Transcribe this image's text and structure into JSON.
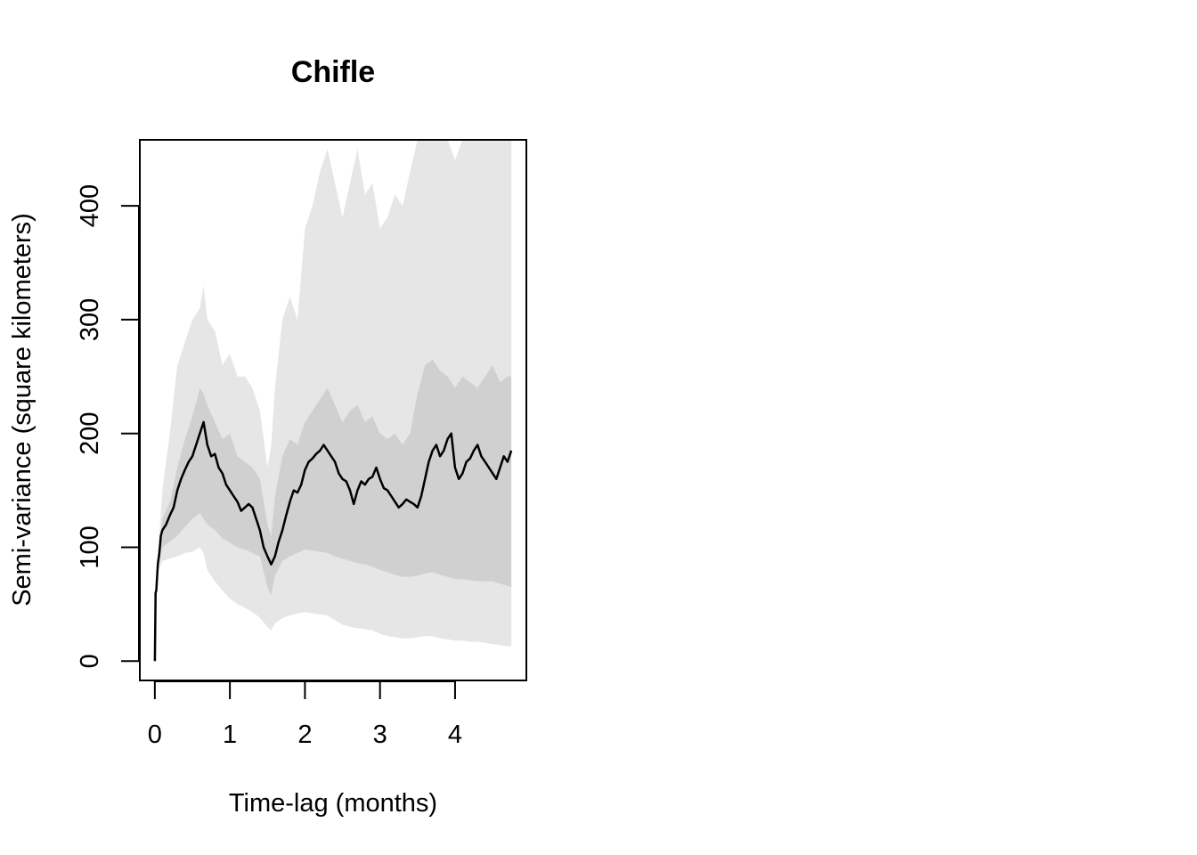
{
  "chart_data": {
    "type": "area",
    "title": "Chifle",
    "xlabel": "Time-lag (months)",
    "ylabel": "Semi-variance (square kilometers)",
    "xlim": [
      -0.2,
      4.95
    ],
    "ylim": [
      -17,
      458
    ],
    "xticks": [
      0,
      1,
      2,
      3,
      4
    ],
    "yticks": [
      0,
      100,
      200,
      300,
      400
    ],
    "grid": false,
    "colors": {
      "outer_band": "#e6e6e6",
      "inner_band": "#d0d0d0",
      "line": "#000000"
    },
    "series": [
      {
        "role": "outer-upper",
        "x": [
          0,
          0.02,
          0.05,
          0.1,
          0.2,
          0.3,
          0.4,
          0.5,
          0.6,
          0.65,
          0.7,
          0.8,
          0.9,
          1.0,
          1.1,
          1.2,
          1.3,
          1.4,
          1.5,
          1.55,
          1.6,
          1.7,
          1.8,
          1.9,
          2.0,
          2.1,
          2.2,
          2.3,
          2.4,
          2.5,
          2.6,
          2.7,
          2.8,
          2.9,
          3.0,
          3.1,
          3.2,
          3.3,
          3.4,
          3.5,
          3.6,
          3.7,
          3.8,
          3.9,
          4.0,
          4.1,
          4.2,
          4.3,
          4.4,
          4.5,
          4.6,
          4.7,
          4.75
        ],
        "y": [
          0,
          60,
          100,
          150,
          200,
          260,
          280,
          300,
          310,
          330,
          300,
          290,
          260,
          270,
          250,
          250,
          240,
          220,
          170,
          190,
          240,
          300,
          320,
          300,
          380,
          400,
          430,
          450,
          420,
          390,
          420,
          450,
          410,
          420,
          380,
          390,
          410,
          400,
          430,
          460,
          460,
          460,
          460,
          460,
          440,
          460,
          460,
          460,
          460,
          460,
          460,
          460,
          460
        ]
      },
      {
        "role": "inner-upper",
        "x": [
          0,
          0.02,
          0.05,
          0.1,
          0.2,
          0.3,
          0.4,
          0.5,
          0.6,
          0.65,
          0.7,
          0.8,
          0.9,
          1.0,
          1.1,
          1.2,
          1.3,
          1.4,
          1.5,
          1.55,
          1.6,
          1.7,
          1.8,
          1.9,
          2.0,
          2.1,
          2.2,
          2.3,
          2.4,
          2.5,
          2.6,
          2.7,
          2.8,
          2.9,
          3.0,
          3.1,
          3.2,
          3.3,
          3.4,
          3.5,
          3.6,
          3.7,
          3.8,
          3.9,
          4.0,
          4.1,
          4.2,
          4.3,
          4.4,
          4.5,
          4.6,
          4.7,
          4.75
        ],
        "y": [
          0,
          60,
          95,
          125,
          140,
          170,
          195,
          215,
          240,
          235,
          225,
          210,
          195,
          200,
          180,
          175,
          170,
          160,
          120,
          110,
          145,
          180,
          195,
          190,
          210,
          220,
          230,
          240,
          225,
          210,
          220,
          225,
          210,
          215,
          200,
          195,
          200,
          190,
          200,
          235,
          260,
          265,
          255,
          250,
          240,
          250,
          245,
          240,
          250,
          260,
          245,
          250,
          250
        ]
      },
      {
        "role": "inner-lower",
        "x": [
          0,
          0.02,
          0.05,
          0.1,
          0.2,
          0.3,
          0.4,
          0.5,
          0.6,
          0.65,
          0.7,
          0.8,
          0.9,
          1.0,
          1.1,
          1.2,
          1.3,
          1.4,
          1.5,
          1.55,
          1.6,
          1.7,
          1.8,
          1.9,
          2.0,
          2.1,
          2.2,
          2.3,
          2.4,
          2.5,
          2.6,
          2.7,
          2.8,
          2.9,
          3.0,
          3.1,
          3.2,
          3.3,
          3.4,
          3.5,
          3.6,
          3.7,
          3.8,
          3.9,
          4.0,
          4.1,
          4.2,
          4.3,
          4.4,
          4.5,
          4.6,
          4.7,
          4.75
        ],
        "y": [
          0,
          60,
          85,
          100,
          105,
          110,
          118,
          125,
          130,
          125,
          120,
          115,
          108,
          104,
          100,
          98,
          95,
          92,
          65,
          58,
          75,
          88,
          92,
          95,
          98,
          97,
          96,
          95,
          92,
          90,
          88,
          86,
          85,
          83,
          80,
          78,
          76,
          74,
          74,
          75,
          77,
          78,
          76,
          74,
          72,
          72,
          71,
          70,
          70,
          70,
          68,
          66,
          65
        ]
      },
      {
        "role": "outer-lower",
        "x": [
          0,
          0.02,
          0.05,
          0.1,
          0.2,
          0.3,
          0.4,
          0.5,
          0.6,
          0.65,
          0.7,
          0.8,
          0.9,
          1.0,
          1.1,
          1.2,
          1.3,
          1.4,
          1.5,
          1.55,
          1.6,
          1.7,
          1.8,
          1.9,
          2.0,
          2.1,
          2.2,
          2.3,
          2.4,
          2.5,
          2.6,
          2.7,
          2.8,
          2.9,
          3.0,
          3.1,
          3.2,
          3.3,
          3.4,
          3.5,
          3.6,
          3.7,
          3.8,
          3.9,
          4.0,
          4.1,
          4.2,
          4.3,
          4.4,
          4.5,
          4.6,
          4.7,
          4.75
        ],
        "y": [
          0,
          60,
          80,
          88,
          90,
          92,
          95,
          96,
          100,
          95,
          80,
          70,
          62,
          55,
          50,
          47,
          43,
          38,
          30,
          27,
          33,
          38,
          40,
          42,
          43,
          42,
          41,
          40,
          36,
          32,
          30,
          29,
          28,
          27,
          24,
          22,
          21,
          20,
          20,
          21,
          22,
          22,
          20,
          19,
          18,
          18,
          17,
          17,
          16,
          15,
          14,
          13,
          13
        ]
      },
      {
        "role": "estimate",
        "x": [
          0,
          0.01,
          0.02,
          0.04,
          0.06,
          0.08,
          0.1,
          0.15,
          0.2,
          0.25,
          0.3,
          0.35,
          0.4,
          0.45,
          0.5,
          0.55,
          0.6,
          0.65,
          0.7,
          0.75,
          0.8,
          0.85,
          0.9,
          0.95,
          1.0,
          1.05,
          1.1,
          1.15,
          1.2,
          1.25,
          1.3,
          1.35,
          1.4,
          1.45,
          1.5,
          1.55,
          1.6,
          1.65,
          1.7,
          1.75,
          1.8,
          1.85,
          1.9,
          1.95,
          2.0,
          2.05,
          2.1,
          2.15,
          2.2,
          2.25,
          2.3,
          2.35,
          2.4,
          2.45,
          2.5,
          2.55,
          2.6,
          2.65,
          2.7,
          2.75,
          2.8,
          2.85,
          2.9,
          2.95,
          3.0,
          3.05,
          3.1,
          3.15,
          3.2,
          3.25,
          3.3,
          3.35,
          3.4,
          3.45,
          3.5,
          3.55,
          3.6,
          3.65,
          3.7,
          3.75,
          3.8,
          3.85,
          3.9,
          3.95,
          4.0,
          4.05,
          4.1,
          4.15,
          4.2,
          4.25,
          4.3,
          4.35,
          4.4,
          4.45,
          4.5,
          4.55,
          4.6,
          4.65,
          4.7,
          4.75
        ],
        "y": [
          0,
          60,
          62,
          85,
          95,
          110,
          115,
          120,
          128,
          135,
          150,
          160,
          168,
          175,
          180,
          190,
          200,
          210,
          190,
          180,
          182,
          170,
          165,
          155,
          150,
          145,
          140,
          132,
          135,
          138,
          135,
          125,
          115,
          100,
          92,
          85,
          92,
          105,
          115,
          128,
          140,
          150,
          148,
          155,
          168,
          175,
          178,
          182,
          185,
          190,
          185,
          180,
          175,
          165,
          160,
          158,
          150,
          138,
          150,
          158,
          155,
          160,
          162,
          170,
          160,
          152,
          150,
          145,
          140,
          135,
          138,
          142,
          140,
          138,
          135,
          145,
          160,
          175,
          185,
          190,
          180,
          185,
          195,
          200,
          170,
          160,
          165,
          175,
          178,
          185,
          190,
          180,
          175,
          170,
          165,
          160,
          170,
          180,
          175,
          185
        ]
      }
    ]
  }
}
